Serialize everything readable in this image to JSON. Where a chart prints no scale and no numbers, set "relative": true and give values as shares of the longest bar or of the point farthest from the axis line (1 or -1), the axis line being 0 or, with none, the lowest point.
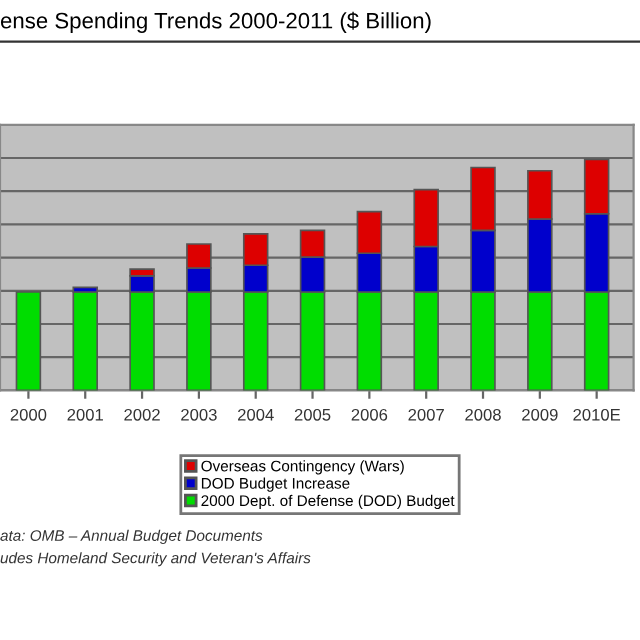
{
  "chart_data": {
    "type": "bar",
    "title": "ense Spending Trends 2000-2011 ($ Billion)",
    "relative": true,
    "stacked": true,
    "grid": "y",
    "legend": "bottom",
    "categories": [
      "2000",
      "2001",
      "2002",
      "2003",
      "2004",
      "2005",
      "2006",
      "2007",
      "2008",
      "2009",
      "2010E"
    ],
    "series": [
      {
        "name": "2000 Dept. of Defense (DOD) Budget",
        "color": "#00dd00",
        "values": [
          0.426,
          0.426,
          0.426,
          0.426,
          0.426,
          0.426,
          0.426,
          0.426,
          0.426,
          0.426,
          0.426
        ]
      },
      {
        "name": "DOD Budget Increase",
        "color": "#0000cc",
        "values": [
          null,
          0.02,
          0.07,
          0.104,
          0.116,
          0.151,
          0.168,
          0.197,
          0.267,
          0.316,
          0.339
        ]
      },
      {
        "name": "Overseas Contingency (Wars)",
        "color": "#dd0000",
        "values": [
          null,
          null,
          0.029,
          0.104,
          0.136,
          0.116,
          0.18,
          0.246,
          0.272,
          0.209,
          0.235
        ]
      }
    ],
    "annotations": [
      "ata: OMB – Annual Budget Documents",
      "udes Homeland Security and Veteran's Affairs"
    ]
  }
}
